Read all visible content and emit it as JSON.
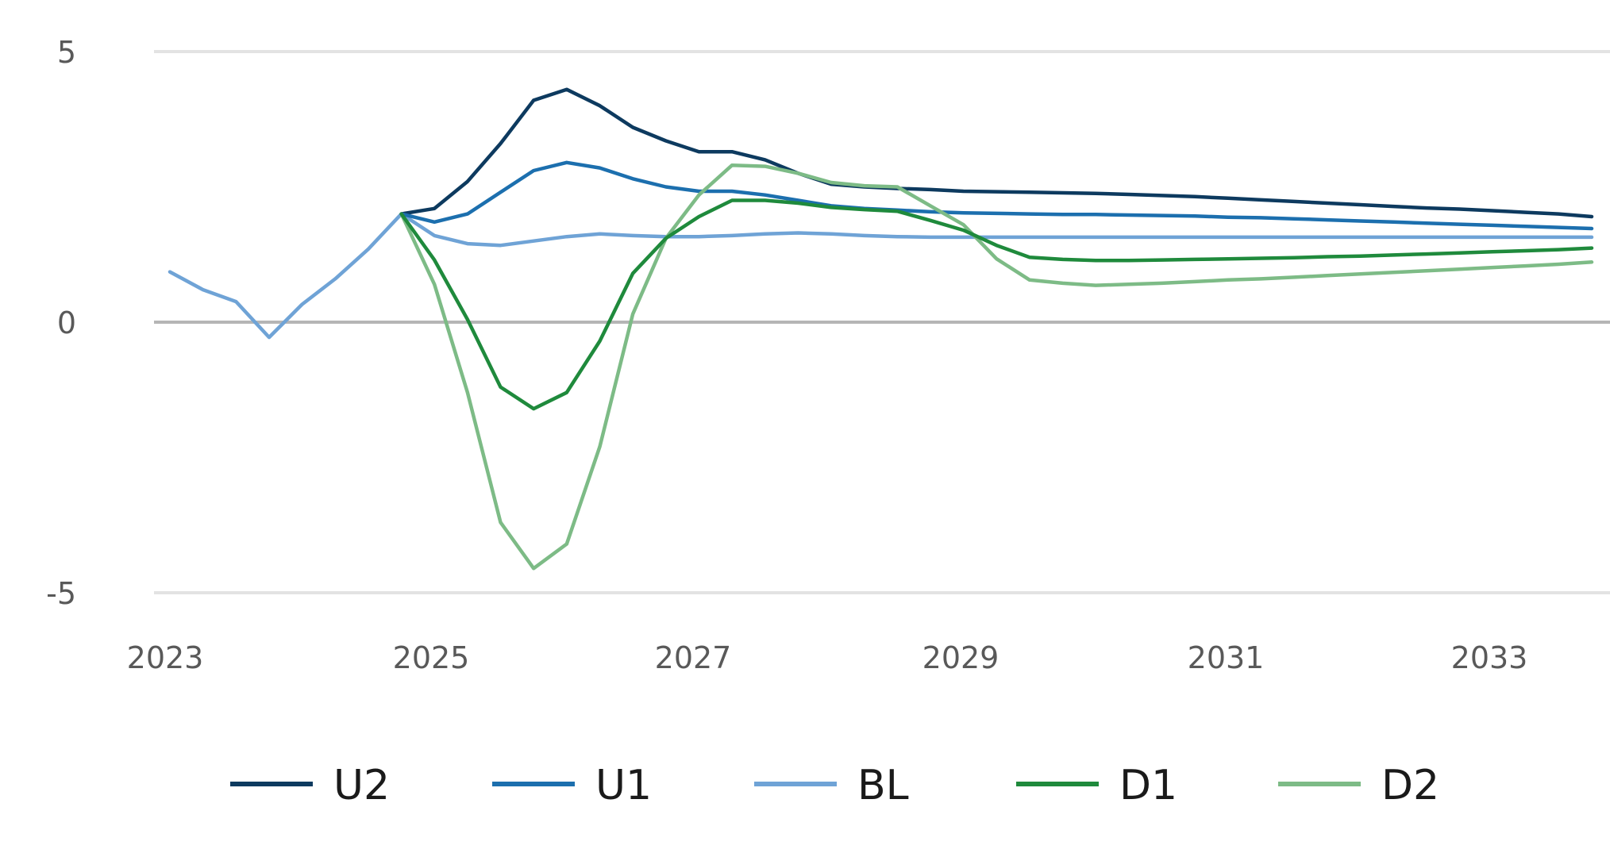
{
  "chart_data": {
    "type": "line",
    "title": "",
    "xlabel": "",
    "ylabel": "",
    "x_ticks": [
      "2023",
      "2025",
      "2027",
      "2029",
      "2031",
      "2033"
    ],
    "y_ticks": [
      "5",
      "0",
      "-5"
    ],
    "ylim": [
      -5,
      5
    ],
    "xlim": [
      2023.0,
      2033.75
    ],
    "grid": true,
    "legend_position": "bottom",
    "series": [
      {
        "name": "U2",
        "color": "#0d3a5f",
        "x": [
          2024.75,
          2025.0,
          2025.25,
          2025.5,
          2025.75,
          2026.0,
          2026.25,
          2026.5,
          2026.75,
          2027.0,
          2027.25,
          2027.5,
          2027.75,
          2028.0,
          2028.25,
          2028.5,
          2028.75,
          2029.0,
          2029.25,
          2029.5,
          2029.75,
          2030.0,
          2030.25,
          2030.5,
          2030.75,
          2031.0,
          2031.25,
          2031.5,
          2031.75,
          2032.0,
          2032.25,
          2032.5,
          2032.75,
          2033.0,
          2033.25,
          2033.5,
          2033.75
        ],
        "values": [
          2.0,
          2.1,
          2.6,
          3.3,
          4.1,
          4.3,
          4.0,
          3.6,
          3.35,
          3.15,
          3.15,
          3.0,
          2.75,
          2.55,
          2.5,
          2.47,
          2.45,
          2.42,
          2.41,
          2.4,
          2.39,
          2.38,
          2.36,
          2.34,
          2.32,
          2.29,
          2.26,
          2.23,
          2.2,
          2.17,
          2.14,
          2.11,
          2.09,
          2.06,
          2.03,
          2.0,
          1.95
        ]
      },
      {
        "name": "U1",
        "color": "#1c6fae",
        "x": [
          2024.75,
          2025.0,
          2025.25,
          2025.5,
          2025.75,
          2026.0,
          2026.25,
          2026.5,
          2026.75,
          2027.0,
          2027.25,
          2027.5,
          2027.75,
          2028.0,
          2028.25,
          2028.5,
          2028.75,
          2029.0,
          2029.25,
          2029.5,
          2029.75,
          2030.0,
          2030.25,
          2030.5,
          2030.75,
          2031.0,
          2031.25,
          2031.5,
          2031.75,
          2032.0,
          2032.25,
          2032.5,
          2032.75,
          2033.0,
          2033.25,
          2033.5,
          2033.75
        ],
        "values": [
          2.0,
          1.85,
          2.0,
          2.4,
          2.8,
          2.95,
          2.85,
          2.65,
          2.5,
          2.42,
          2.42,
          2.35,
          2.25,
          2.15,
          2.1,
          2.07,
          2.04,
          2.02,
          2.01,
          2.0,
          1.99,
          1.99,
          1.98,
          1.97,
          1.96,
          1.94,
          1.93,
          1.91,
          1.89,
          1.87,
          1.85,
          1.83,
          1.81,
          1.79,
          1.77,
          1.75,
          1.73
        ]
      },
      {
        "name": "BL",
        "color": "#6fa3d6",
        "x": [
          2023.0,
          2023.25,
          2023.5,
          2023.75,
          2024.0,
          2024.25,
          2024.5,
          2024.75,
          2025.0,
          2025.25,
          2025.5,
          2025.75,
          2026.0,
          2026.25,
          2026.5,
          2026.75,
          2027.0,
          2027.25,
          2027.5,
          2027.75,
          2028.0,
          2028.25,
          2028.5,
          2028.75,
          2029.0,
          2029.25,
          2029.5,
          2029.75,
          2030.0,
          2030.25,
          2030.5,
          2030.75,
          2031.0,
          2031.5,
          2032.0,
          2032.5,
          2033.0,
          2033.5,
          2033.75
        ],
        "values": [
          0.93,
          0.6,
          0.38,
          -0.28,
          0.33,
          0.8,
          1.35,
          2.0,
          1.6,
          1.45,
          1.42,
          1.5,
          1.58,
          1.63,
          1.6,
          1.58,
          1.58,
          1.6,
          1.63,
          1.65,
          1.63,
          1.6,
          1.58,
          1.57,
          1.57,
          1.57,
          1.57,
          1.57,
          1.57,
          1.57,
          1.57,
          1.57,
          1.57,
          1.57,
          1.57,
          1.57,
          1.57,
          1.57,
          1.57
        ]
      },
      {
        "name": "D1",
        "color": "#1f8a3c",
        "x": [
          2024.75,
          2025.0,
          2025.25,
          2025.5,
          2025.75,
          2026.0,
          2026.25,
          2026.5,
          2026.75,
          2027.0,
          2027.25,
          2027.5,
          2027.75,
          2028.0,
          2028.25,
          2028.5,
          2028.75,
          2029.0,
          2029.25,
          2029.5,
          2029.75,
          2030.0,
          2030.25,
          2030.5,
          2030.75,
          2031.0,
          2031.25,
          2031.5,
          2031.75,
          2032.0,
          2032.25,
          2032.5,
          2032.75,
          2033.0,
          2033.25,
          2033.5,
          2033.75
        ],
        "values": [
          2.0,
          1.15,
          0.05,
          -1.2,
          -1.6,
          -1.3,
          -0.35,
          0.9,
          1.55,
          1.95,
          2.25,
          2.25,
          2.2,
          2.12,
          2.08,
          2.05,
          1.88,
          1.7,
          1.42,
          1.2,
          1.16,
          1.14,
          1.14,
          1.15,
          1.16,
          1.17,
          1.18,
          1.19,
          1.21,
          1.22,
          1.24,
          1.26,
          1.28,
          1.3,
          1.32,
          1.34,
          1.37
        ]
      },
      {
        "name": "D2",
        "color": "#7dbb86",
        "x": [
          2024.75,
          2025.0,
          2025.25,
          2025.5,
          2025.75,
          2026.0,
          2026.25,
          2026.5,
          2026.75,
          2027.0,
          2027.25,
          2027.5,
          2027.75,
          2028.0,
          2028.25,
          2028.5,
          2028.75,
          2029.0,
          2029.25,
          2029.5,
          2029.75,
          2030.0,
          2030.25,
          2030.5,
          2030.75,
          2031.0,
          2031.25,
          2031.5,
          2031.75,
          2032.0,
          2032.25,
          2032.5,
          2032.75,
          2033.0,
          2033.25,
          2033.5,
          2033.75
        ],
        "values": [
          2.0,
          0.7,
          -1.3,
          -3.7,
          -4.55,
          -4.1,
          -2.3,
          0.15,
          1.55,
          2.35,
          2.9,
          2.88,
          2.75,
          2.58,
          2.52,
          2.5,
          2.15,
          1.8,
          1.17,
          0.78,
          0.72,
          0.68,
          0.7,
          0.72,
          0.75,
          0.78,
          0.8,
          0.83,
          0.86,
          0.89,
          0.92,
          0.95,
          0.98,
          1.01,
          1.04,
          1.07,
          1.11
        ]
      }
    ]
  }
}
